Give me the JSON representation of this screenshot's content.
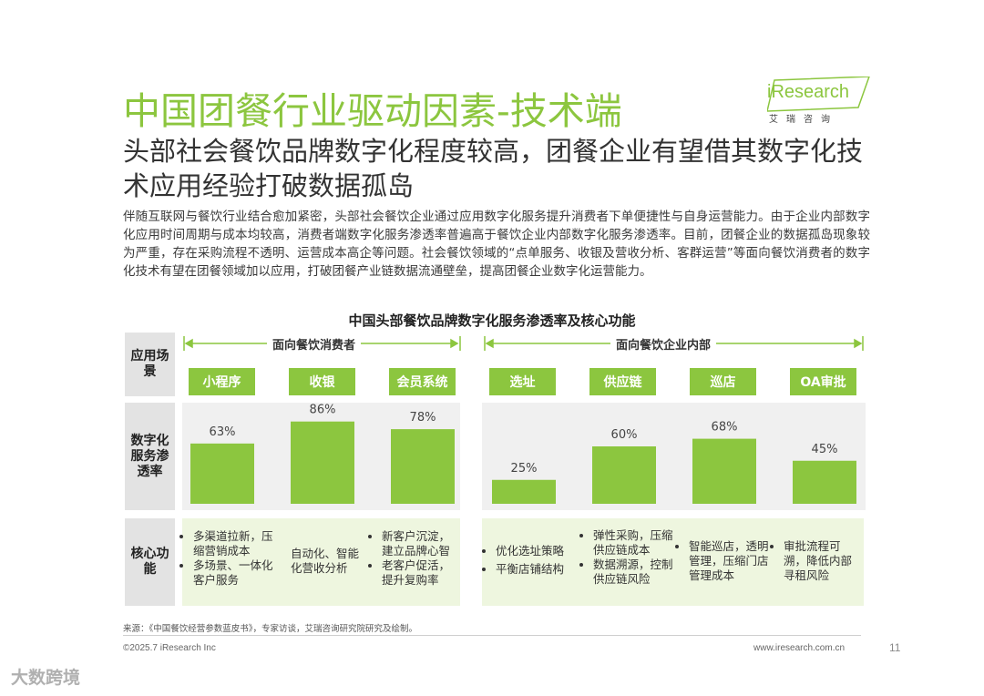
{
  "header": {
    "title": "中国团餐行业驱动因素-技术端",
    "subtitle": "头部社会餐饮品牌数字化程度较高，团餐企业有望借其数字化技术应用经验打破数据孤岛",
    "body": "伴随互联网与餐饮行业结合愈加紧密，头部社会餐饮企业通过应用数字化服务提升消费者下单便捷性与自身运营能力。由于企业内部数字化应用时间周期与成本均较高，消费者端数字化服务渗透率普遍高于餐饮企业内部数字化服务渗透率。目前，团餐企业的数据孤岛现象较为严重，存在采购流程不透明、运营成本高企等问题。社会餐饮领域的“点单服务、收银及营收分析、客群运营”等面向餐饮消费者的数字化技术有望在团餐领域加以应用，打破团餐产业链数据流通壁垒，提高团餐企业数字化运营能力。"
  },
  "logo": {
    "brand": "iResearch",
    "cn": "艾瑞咨询"
  },
  "row_headers": {
    "scene": "应用场景",
    "rate": "数字化服务渗透率",
    "function": "核心功能"
  },
  "chart_data": {
    "type": "bar",
    "title": "中国头部餐饮品牌数字化服务渗透率及核心功能",
    "groups": [
      {
        "name": "面向餐饮消费者",
        "categories": [
          "小程序",
          "收银",
          "会员系统"
        ]
      },
      {
        "name": "面向餐饮企业内部",
        "categories": [
          "选址",
          "供应链",
          "巡店",
          "OA审批"
        ]
      }
    ],
    "categories": [
      "小程序",
      "收银",
      "会员系统",
      "选址",
      "供应链",
      "巡店",
      "OA审批"
    ],
    "values": [
      63,
      86,
      78,
      25,
      60,
      68,
      45
    ],
    "labels": [
      "63%",
      "86%",
      "78%",
      "25%",
      "60%",
      "68%",
      "45%"
    ],
    "unit": "%",
    "ylim": [
      0,
      100
    ],
    "bar_color": "#8cc63f"
  },
  "functions": [
    [
      "多渠道拉新，压缩营销成本",
      "多场景、一体化客户服务"
    ],
    [
      "自动化、智能化营收分析"
    ],
    [
      "新客户沉淀，建立品牌心智",
      "老客户促活，提升复购率"
    ],
    [
      "优化选址策略",
      "平衡店铺结构"
    ],
    [
      "弹性采购，压缩供应链成本",
      "数据溯源，控制供应链风险"
    ],
    [
      "智能巡店，透明管理，压缩门店管理成本"
    ],
    [
      "审批流程可溯，降低内部寻租风险"
    ]
  ],
  "footer": {
    "source": "来源：《中国餐饮经营参数蓝皮书》，专家访谈，艾瑞咨询研究院研究及绘制。",
    "copyright": "©2025.7 iResearch Inc",
    "website": "www.iresearch.com.cn",
    "page": "11"
  },
  "watermark": "大数跨境"
}
